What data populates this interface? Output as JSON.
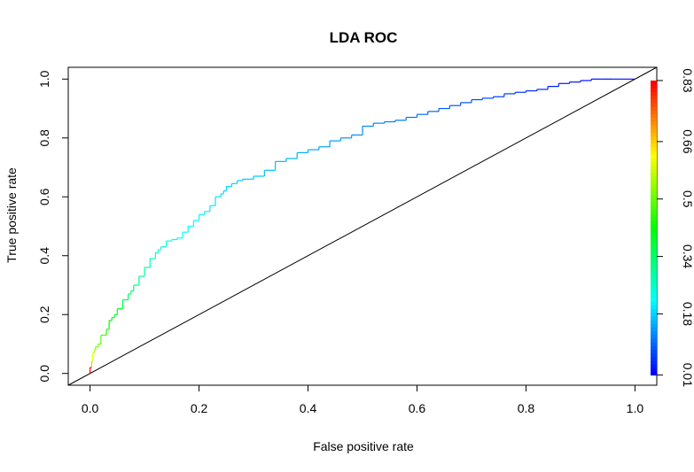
{
  "chart_data": {
    "type": "line",
    "title": "LDA ROC",
    "xlabel": "False positive rate",
    "ylabel": "True positive rate",
    "xlim": [
      -0.04,
      1.04
    ],
    "ylim": [
      -0.04,
      1.04
    ],
    "x_ticks": [
      "0.0",
      "0.2",
      "0.4",
      "0.6",
      "0.8",
      "1.0"
    ],
    "y_ticks": [
      "0.0",
      "0.2",
      "0.4",
      "0.6",
      "0.8",
      "1.0"
    ],
    "colorbar": {
      "ticks": [
        "0.01",
        "0.18",
        "0.34",
        "0.5",
        "0.66",
        "0.83"
      ],
      "range": [
        0.01,
        0.83
      ],
      "colormap": [
        "#0000ff",
        "#00ffff",
        "#00ff00",
        "#ffff00",
        "#ff0000"
      ]
    },
    "grid": false,
    "diagonal_reference": true,
    "series": [
      {
        "x": [
          0.0,
          0.003,
          0.005,
          0.008,
          0.01,
          0.015,
          0.02,
          0.03,
          0.035,
          0.04,
          0.045,
          0.05,
          0.06,
          0.07,
          0.075,
          0.08,
          0.09,
          0.1,
          0.11,
          0.12,
          0.125,
          0.13,
          0.14,
          0.15,
          0.16,
          0.17,
          0.18,
          0.19,
          0.2,
          0.21,
          0.22,
          0.23,
          0.24,
          0.245,
          0.25,
          0.26,
          0.27,
          0.28,
          0.3,
          0.32,
          0.34,
          0.36,
          0.38,
          0.4,
          0.42,
          0.44,
          0.46,
          0.48,
          0.5,
          0.52,
          0.54,
          0.56,
          0.58,
          0.6,
          0.62,
          0.64,
          0.66,
          0.68,
          0.7,
          0.72,
          0.74,
          0.76,
          0.78,
          0.8,
          0.82,
          0.84,
          0.86,
          0.88,
          0.9,
          0.92,
          0.94,
          0.96,
          1.0
        ],
        "y": [
          0.0,
          0.02,
          0.04,
          0.07,
          0.08,
          0.09,
          0.1,
          0.13,
          0.15,
          0.18,
          0.19,
          0.2,
          0.22,
          0.25,
          0.27,
          0.28,
          0.3,
          0.33,
          0.36,
          0.39,
          0.41,
          0.42,
          0.43,
          0.45,
          0.455,
          0.46,
          0.48,
          0.5,
          0.52,
          0.54,
          0.55,
          0.57,
          0.6,
          0.61,
          0.62,
          0.635,
          0.645,
          0.655,
          0.66,
          0.67,
          0.69,
          0.72,
          0.73,
          0.75,
          0.76,
          0.77,
          0.79,
          0.8,
          0.81,
          0.84,
          0.85,
          0.855,
          0.86,
          0.87,
          0.88,
          0.89,
          0.9,
          0.91,
          0.92,
          0.93,
          0.935,
          0.94,
          0.95,
          0.955,
          0.96,
          0.965,
          0.975,
          0.985,
          0.99,
          0.995,
          1.0,
          1.0,
          1.0
        ],
        "cutoffs": [
          0.83,
          0.68,
          0.6,
          0.55,
          0.52,
          0.5,
          0.48,
          0.44,
          0.42,
          0.4,
          0.39,
          0.38,
          0.36,
          0.34,
          0.33,
          0.32,
          0.31,
          0.29,
          0.27,
          0.26,
          0.25,
          0.245,
          0.24,
          0.235,
          0.23,
          0.225,
          0.22,
          0.215,
          0.21,
          0.205,
          0.2,
          0.195,
          0.19,
          0.185,
          0.18,
          0.178,
          0.175,
          0.172,
          0.168,
          0.165,
          0.16,
          0.155,
          0.15,
          0.145,
          0.14,
          0.135,
          0.13,
          0.125,
          0.12,
          0.115,
          0.11,
          0.105,
          0.1,
          0.095,
          0.09,
          0.085,
          0.08,
          0.075,
          0.07,
          0.065,
          0.06,
          0.055,
          0.05,
          0.045,
          0.04,
          0.035,
          0.03,
          0.027,
          0.024,
          0.02,
          0.016,
          0.012,
          0.01
        ]
      }
    ]
  }
}
